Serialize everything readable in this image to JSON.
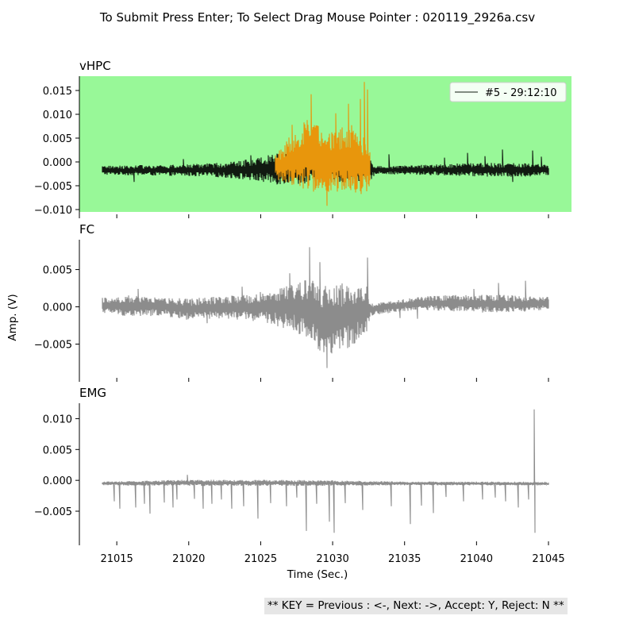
{
  "figure_title": "To Submit Press Enter; To Select Drag Mouse Pointer : 020119_2926a.csv",
  "key_help": "** KEY = Previous : <-, Next: ->, Accept: Y, Reject: N **",
  "xlabel": "Time (Sec.)",
  "ylabel": "Amp. (V)",
  "colors": {
    "selected_panel_bg": "#98f898",
    "trace_black": "#111a11",
    "trace_highlight": "#e8960c",
    "trace_gray": "#8c8c8c",
    "legend_bg": "#f4fff4"
  },
  "chart_data": [
    {
      "type": "line",
      "title": "vHPC",
      "xlim": [
        21012.4,
        21046.6
      ],
      "ylim": [
        -0.0105,
        0.018
      ],
      "xticks": [
        21015,
        21020,
        21025,
        21030,
        21035,
        21040,
        21045
      ],
      "yticks": [
        -0.01,
        -0.005,
        0.0,
        0.005,
        0.01,
        0.015
      ],
      "ytick_labels": [
        "−0.010",
        "−0.005",
        "0.000",
        "0.005",
        "0.010",
        "0.015"
      ],
      "background_highlighted": true,
      "legend": {
        "label": "#5 - 29:12:10",
        "position": "upper right"
      },
      "series": [
        {
          "name": "#5 - 29:12:10",
          "color_key": "trace_black",
          "x_range": [
            21014.0,
            21045.0
          ],
          "envelope": [
            [
              21014,
              -0.0027,
              -0.0008
            ],
            [
              21016,
              -0.0028,
              -0.0007
            ],
            [
              21018,
              -0.0029,
              -0.0006
            ],
            [
              21020,
              -0.003,
              -0.0005
            ],
            [
              21022,
              -0.0032,
              -0.0002
            ],
            [
              21023.5,
              -0.0036,
              0.0002
            ],
            [
              21024.8,
              -0.0042,
              0.0012
            ],
            [
              21025.6,
              -0.0045,
              0.0018
            ],
            [
              21026.0,
              -0.0048,
              0.0022
            ],
            [
              21032.6,
              -0.004,
              0.0008
            ],
            [
              21033.0,
              -0.0025,
              -0.0009
            ],
            [
              21035,
              -0.0027,
              -0.0007
            ],
            [
              21037,
              -0.0028,
              -0.0005
            ],
            [
              21039,
              -0.003,
              -0.0003
            ],
            [
              21041,
              -0.0031,
              -0.0002
            ],
            [
              21043,
              -0.0032,
              -0.0002
            ],
            [
              21045,
              -0.0028,
              -0.0006
            ]
          ],
          "spikes": [
            [
              21016.2,
              -0.0042
            ],
            [
              21019.6,
              0.0006
            ],
            [
              21024.3,
              0.0014
            ],
            [
              21033.9,
              0.0016
            ],
            [
              21037.8,
              0.0009
            ],
            [
              21039.4,
              0.0019
            ],
            [
              21040.6,
              0.0012
            ],
            [
              21041.8,
              0.0026
            ],
            [
              21042.5,
              -0.0042
            ],
            [
              21043.9,
              0.0024
            ],
            [
              21044.5,
              0.0011
            ]
          ]
        },
        {
          "name": "",
          "color_key": "trace_highlight",
          "x_range": [
            21026.0,
            21032.6
          ],
          "envelope": [
            [
              21026.0,
              -0.0035,
              0.0014
            ],
            [
              21026.8,
              -0.0048,
              0.0045
            ],
            [
              21027.5,
              -0.0052,
              0.0068
            ],
            [
              21028.3,
              -0.006,
              0.0092
            ],
            [
              21029.0,
              -0.0068,
              0.0076
            ],
            [
              21029.8,
              -0.0072,
              0.0063
            ],
            [
              21030.6,
              -0.0062,
              0.0074
            ],
            [
              21031.4,
              -0.0066,
              0.0082
            ],
            [
              21032.0,
              -0.0068,
              0.0062
            ],
            [
              21032.6,
              -0.0062,
              0.0033
            ]
          ],
          "spikes": [
            [
              21028.5,
              0.0142
            ],
            [
              21029.6,
              -0.0092
            ],
            [
              21030.2,
              0.0102
            ],
            [
              21031.1,
              0.0122
            ],
            [
              21031.9,
              0.0132
            ],
            [
              21032.2,
              0.0168
            ],
            [
              21032.4,
              0.0152
            ],
            [
              21027.2,
              0.0078
            ]
          ]
        }
      ]
    },
    {
      "type": "line",
      "title": "FC",
      "xlim": [
        21012.4,
        21046.6
      ],
      "ylim": [
        -0.0092,
        0.009
      ],
      "xticks": [
        21015,
        21020,
        21025,
        21030,
        21035,
        21040,
        21045
      ],
      "yticks": [
        -0.005,
        0.0,
        0.005
      ],
      "ytick_labels": [
        "−0.005",
        "0.000",
        "0.005"
      ],
      "background_highlighted": false,
      "series": [
        {
          "name": "",
          "color_key": "trace_gray",
          "x_range": [
            21014.0,
            21045.0
          ],
          "envelope": [
            [
              21014,
              -0.0008,
              0.0012
            ],
            [
              21016,
              -0.0014,
              0.0016
            ],
            [
              21018,
              -0.0012,
              0.0014
            ],
            [
              21020,
              -0.0018,
              0.0011
            ],
            [
              21022,
              -0.0016,
              0.0014
            ],
            [
              21024,
              -0.0018,
              0.0016
            ],
            [
              21025.5,
              -0.0022,
              0.0022
            ],
            [
              21026.5,
              -0.0028,
              0.0028
            ],
            [
              21027.5,
              -0.0035,
              0.0035
            ],
            [
              21028.5,
              -0.0048,
              0.0036
            ],
            [
              21029.5,
              -0.0068,
              0.003
            ],
            [
              21030.5,
              -0.0062,
              0.0032
            ],
            [
              21031.5,
              -0.005,
              0.003
            ],
            [
              21032.4,
              -0.0035,
              0.0028
            ],
            [
              21032.6,
              -0.0012,
              0.0004
            ],
            [
              21034,
              -0.0008,
              0.0008
            ],
            [
              21036,
              -0.0004,
              0.0014
            ],
            [
              21038,
              -0.0006,
              0.0016
            ],
            [
              21040,
              -0.0008,
              0.0016
            ],
            [
              21042,
              -0.0008,
              0.0016
            ],
            [
              21044,
              -0.0006,
              0.0014
            ],
            [
              21045,
              -0.0004,
              0.0014
            ]
          ],
          "spikes": [
            [
              21016.5,
              0.0024
            ],
            [
              21021.3,
              -0.0022
            ],
            [
              21023.7,
              0.0027
            ],
            [
              21027.0,
              0.0045
            ],
            [
              21028.4,
              0.008
            ],
            [
              21029.1,
              0.006
            ],
            [
              21029.6,
              -0.0082
            ],
            [
              21032.4,
              0.0066
            ],
            [
              21034.7,
              -0.0015
            ],
            [
              21035.9,
              -0.0016
            ],
            [
              21039.8,
              0.0024
            ],
            [
              21041.5,
              0.0032
            ],
            [
              21043.4,
              0.0035
            ]
          ]
        }
      ]
    },
    {
      "type": "line",
      "title": "EMG",
      "xlim": [
        21012.4,
        21046.6
      ],
      "ylim": [
        -0.0095,
        0.0125
      ],
      "xticks": [
        21015,
        21020,
        21025,
        21030,
        21035,
        21040,
        21045
      ],
      "xtick_labels": [
        "21015",
        "21020",
        "21025",
        "21030",
        "21035",
        "21040",
        "21045"
      ],
      "yticks": [
        -0.005,
        0.0,
        0.005,
        0.01
      ],
      "ytick_labels": [
        "−0.005",
        "0.000",
        "0.005",
        "0.010"
      ],
      "background_highlighted": false,
      "series": [
        {
          "name": "",
          "color_key": "trace_gray",
          "x_range": [
            21014.0,
            21045.0
          ],
          "envelope": [
            [
              21014,
              -0.0008,
              -0.0002
            ],
            [
              21020,
              -0.0009,
              0.0001
            ],
            [
              21025,
              -0.0009,
              0.0001
            ],
            [
              21030,
              -0.0009,
              0.0
            ],
            [
              21035,
              -0.0008,
              -0.0002
            ],
            [
              21040,
              -0.0008,
              -0.0002
            ],
            [
              21045,
              -0.0008,
              -0.0003
            ]
          ],
          "spikes": [
            [
              21014.8,
              -0.0034
            ],
            [
              21015.2,
              -0.0046
            ],
            [
              21016.3,
              -0.0044
            ],
            [
              21016.9,
              -0.0038
            ],
            [
              21017.3,
              -0.0054
            ],
            [
              21018.3,
              -0.0036
            ],
            [
              21018.9,
              -0.0044
            ],
            [
              21019.2,
              -0.0031
            ],
            [
              21019.9,
              0.0009
            ],
            [
              21020.4,
              -0.003
            ],
            [
              21021.0,
              -0.0046
            ],
            [
              21021.6,
              -0.0038
            ],
            [
              21022.3,
              -0.0031
            ],
            [
              21023.0,
              -0.0046
            ],
            [
              21023.8,
              -0.0042
            ],
            [
              21024.8,
              -0.0062
            ],
            [
              21025.7,
              -0.0037
            ],
            [
              21026.8,
              -0.0042
            ],
            [
              21027.5,
              -0.0028
            ],
            [
              21028.2,
              -0.0082
            ],
            [
              21028.9,
              -0.0038
            ],
            [
              21029.8,
              -0.0067
            ],
            [
              21030.1,
              -0.0085
            ],
            [
              21030.9,
              -0.0037
            ],
            [
              21032.1,
              -0.0048
            ],
            [
              21034.1,
              -0.0042
            ],
            [
              21035.4,
              -0.0071
            ],
            [
              21036.2,
              -0.0041
            ],
            [
              21037.0,
              -0.0053
            ],
            [
              21037.9,
              -0.0027
            ],
            [
              21039.1,
              -0.0034
            ],
            [
              21040.4,
              -0.0031
            ],
            [
              21041.3,
              -0.0028
            ],
            [
              21042.0,
              -0.0034
            ],
            [
              21042.9,
              -0.0044
            ],
            [
              21043.6,
              -0.0031
            ],
            [
              21044.0,
              0.0115
            ],
            [
              21044.05,
              -0.0085
            ]
          ]
        }
      ]
    }
  ]
}
